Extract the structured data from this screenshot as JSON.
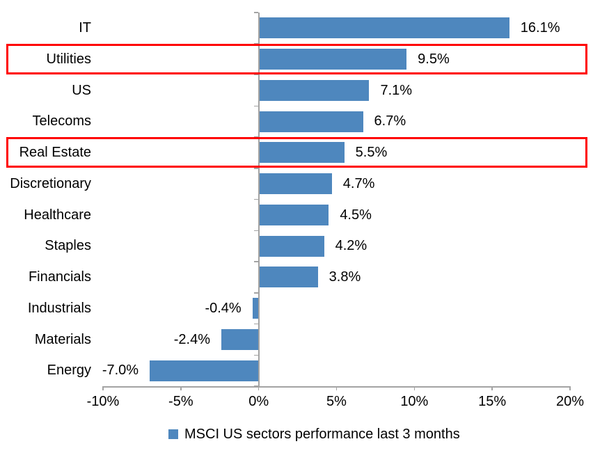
{
  "chart_data": {
    "type": "bar",
    "orientation": "horizontal",
    "title": "",
    "xlabel": "",
    "ylabel": "",
    "categories": [
      "IT",
      "Utilities",
      "US",
      "Telecoms",
      "Real Estate",
      "Discretionary",
      "Healthcare",
      "Staples",
      "Financials",
      "Industrials",
      "Materials",
      "Energy"
    ],
    "values": [
      16.1,
      9.5,
      7.1,
      6.7,
      5.5,
      4.7,
      4.5,
      4.2,
      3.8,
      -0.4,
      -2.4,
      -7.0
    ],
    "value_labels": [
      "16.1%",
      "9.5%",
      "7.1%",
      "6.7%",
      "5.5%",
      "4.7%",
      "4.5%",
      "4.2%",
      "3.8%",
      "-0.4%",
      "-2.4%",
      "-7.0%"
    ],
    "x_ticks": [
      {
        "value": -10,
        "label": "-10%"
      },
      {
        "value": -5,
        "label": "-5%"
      },
      {
        "value": 0,
        "label": "0%"
      },
      {
        "value": 5,
        "label": "5%"
      },
      {
        "value": 10,
        "label": "10%"
      },
      {
        "value": 15,
        "label": "15%"
      },
      {
        "value": 20,
        "label": "20%"
      }
    ],
    "xlim": [
      -10,
      20
    ],
    "grid": false,
    "legend": "MSCI US sectors performance last 3 months",
    "legend_position": "bottom",
    "bar_color": "#4E87BE",
    "axis_color": "#A3A3A3",
    "highlight_color": "#FF0000",
    "highlighted_categories": [
      "Utilities",
      "Real Estate"
    ]
  }
}
